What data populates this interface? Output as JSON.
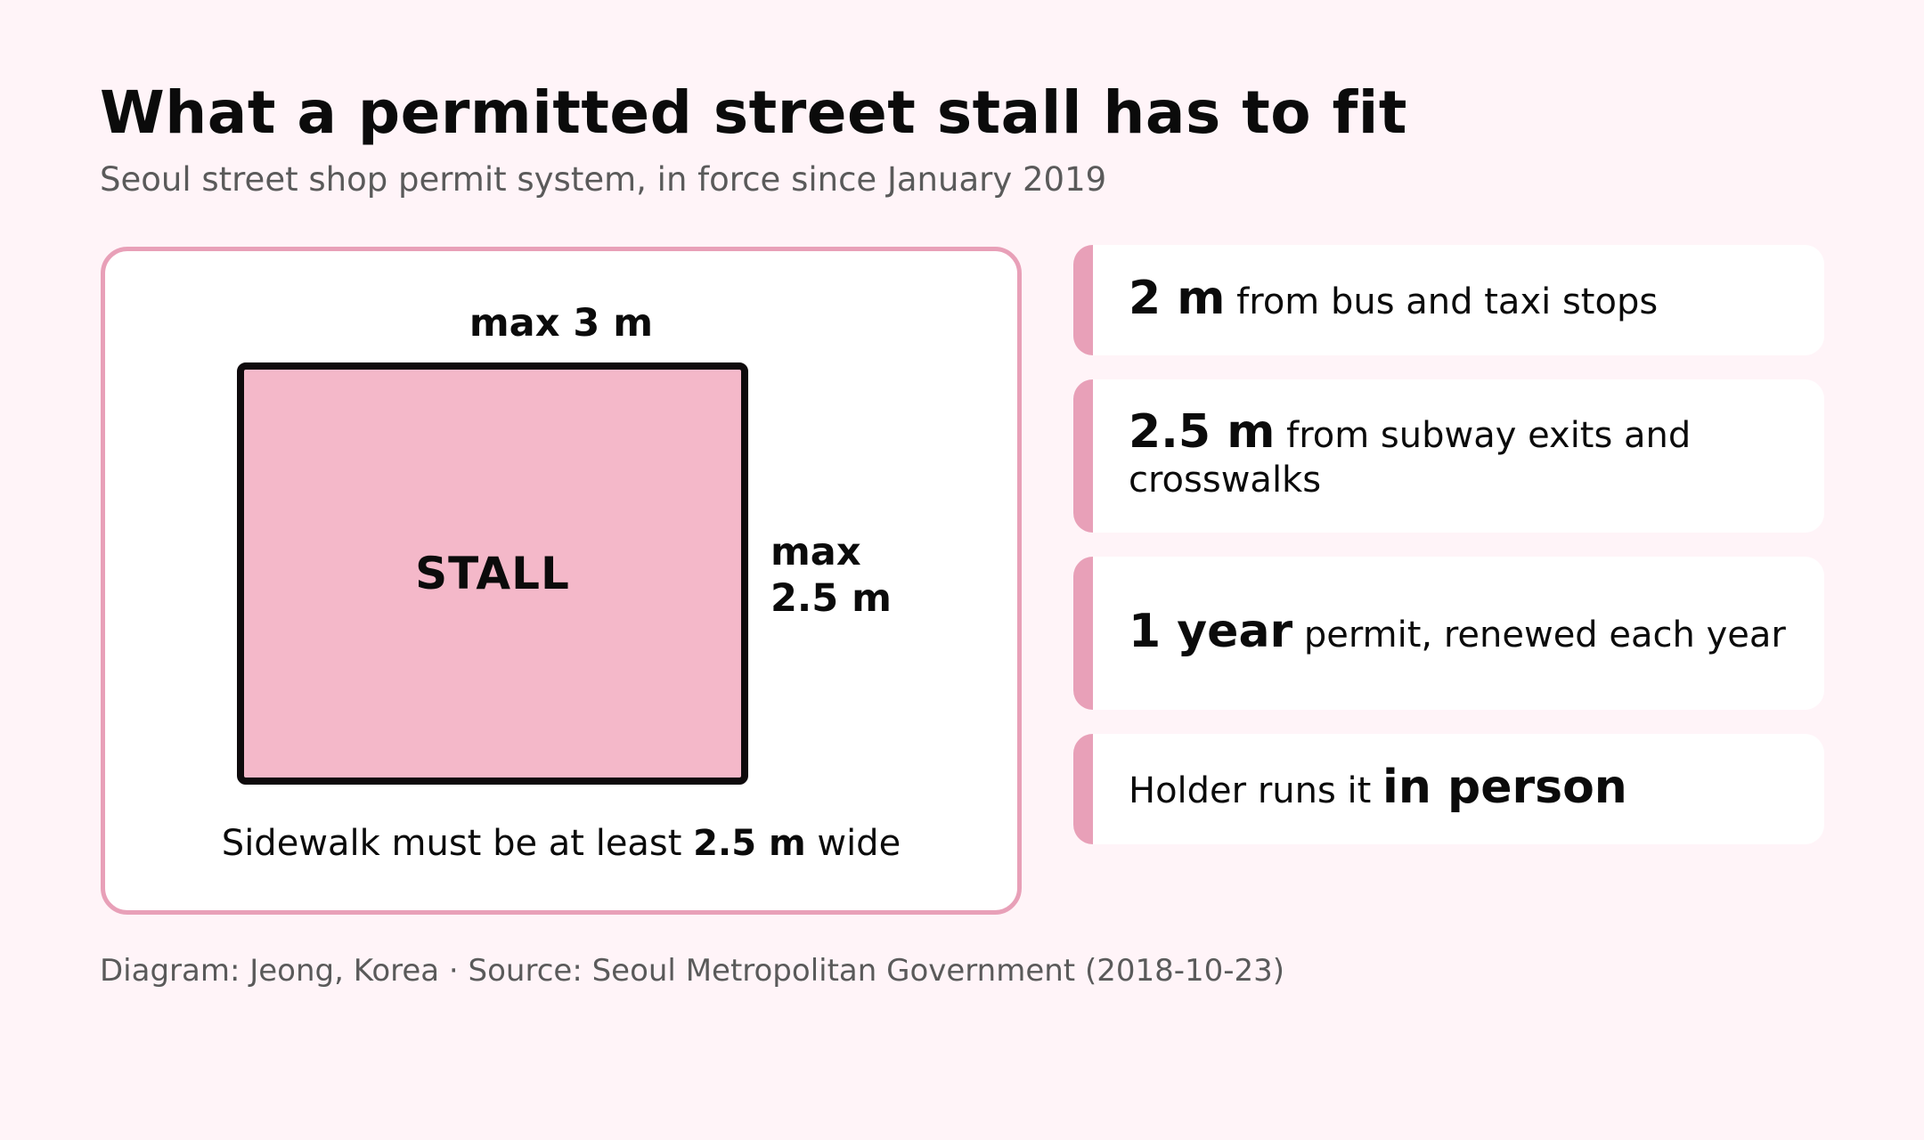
{
  "header": {
    "title": "What a permitted street stall has to fit",
    "subtitle": "Seoul street shop permit system, in force since January 2019"
  },
  "diagram": {
    "width_label": "max 3 m",
    "stall_label": "STALL",
    "depth_label_line1": "max",
    "depth_label_line2": "2.5 m",
    "sidewalk_note_before": "Sidewalk must be at least ",
    "sidewalk_note_value": "2.5 m",
    "sidewalk_note_after": " wide"
  },
  "rules": [
    {
      "highlight": "2 m",
      "text": " from bus and taxi stops"
    },
    {
      "highlight": "2.5 m",
      "text": " from subway exits and crosswalks"
    },
    {
      "highlight": "1 year",
      "text": " permit, renewed each year"
    },
    {
      "prefix": "Holder runs it ",
      "highlight": "in person"
    }
  ],
  "footer": "Diagram: Jeong, Korea · Source: Seoul Metropolitan Government (2018-10-23)",
  "colors": {
    "background": "#fff4f8",
    "accent": "#e8a0b8",
    "stall_fill": "#f4b8c9",
    "stall_border": "#0e0a0c"
  }
}
